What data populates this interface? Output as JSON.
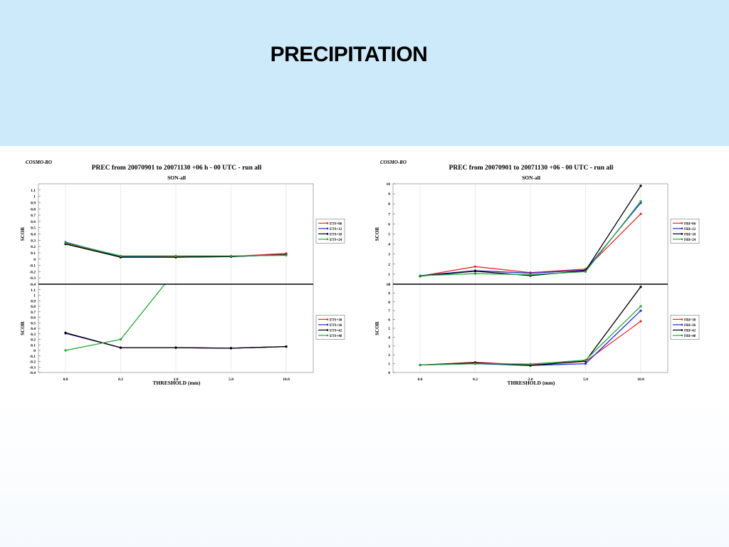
{
  "slide": {
    "title": "PRECIPITATION"
  },
  "chart_data": [
    {
      "type": "line",
      "model": "COSMO-RO",
      "title": "PREC from 20070901 to 20071130 +06 h - 00 UTC - run all",
      "subtitle": "SON-all",
      "xlabel": "THRESHOLD (mm)",
      "categories": [
        "0.0",
        "0.2",
        "2.0",
        "5.0",
        "10.0"
      ],
      "grid": true,
      "legend_position": "right",
      "panels": [
        {
          "ylabel": "SCOR",
          "ylim": [
            -0.4,
            1.2
          ],
          "yticks": [
            "1.1",
            "1",
            "0.9",
            "0.8",
            "0.7",
            "0.6",
            "0.5",
            "0.4",
            "0.3",
            "0.2",
            "0.1",
            "0",
            "-0.1",
            "-0.2",
            "-0.3",
            "-0.4"
          ],
          "series": [
            {
              "name": "ETS+06",
              "color": "#e8282a",
              "values": [
                0.25,
                0.03,
                0.04,
                0.04,
                0.09
              ]
            },
            {
              "name": "ETS+12",
              "color": "#2828d8",
              "values": [
                0.27,
                0.04,
                0.03,
                0.04,
                0.07
              ]
            },
            {
              "name": "ETS+18",
              "color": "#000000",
              "values": [
                0.24,
                0.03,
                0.03,
                0.04,
                0.07
              ]
            },
            {
              "name": "ETS+24",
              "color": "#22a83a",
              "values": [
                0.26,
                0.05,
                0.05,
                0.05,
                0.06
              ]
            }
          ]
        },
        {
          "ylabel": "SCOR",
          "ylim": [
            -0.4,
            1.2
          ],
          "yticks": [
            "1.1",
            "1",
            "0.9",
            "0.8",
            "0.7",
            "0.6",
            "0.5",
            "0.4",
            "0.3",
            "0.2",
            "0.1",
            "0",
            "-0.1",
            "-0.2",
            "-0.3",
            "-0.4"
          ],
          "series": [
            {
              "name": "ETS+30",
              "color": "#e8282a",
              "values": [
                0.32,
                0.05,
                0.05,
                0.04,
                0.07
              ]
            },
            {
              "name": "ETS+36",
              "color": "#2828d8",
              "values": [
                0.31,
                0.05,
                0.05,
                0.04,
                0.07
              ]
            },
            {
              "name": "ETS+42",
              "color": "#000000",
              "values": [
                0.32,
                0.05,
                0.05,
                0.04,
                0.07
              ]
            },
            {
              "name": "ETS+48",
              "color": "#22a83a",
              "values": [
                0.0,
                0.2,
                1.45,
                null,
                null
              ]
            }
          ]
        }
      ]
    },
    {
      "type": "line",
      "model": "COSMO-RO",
      "title": "PREC from 20070901 to 20071130 +06 - 00 UTC - run all",
      "subtitle": "SON-all",
      "xlabel": "THRESHOLD (mm)",
      "categories": [
        "0.0",
        "0.2",
        "2.0",
        "5.0",
        "10.0"
      ],
      "grid": true,
      "legend_position": "right",
      "panels": [
        {
          "ylabel": "SCOR",
          "ylim": [
            0,
            10
          ],
          "yticks": [
            "10",
            "9",
            "8",
            "7",
            "6",
            "5",
            "4",
            "3",
            "2",
            "1",
            "0"
          ],
          "series": [
            {
              "name": "FBI+06",
              "color": "#e8282a",
              "values": [
                0.8,
                1.75,
                1.15,
                1.5,
                7.0
              ]
            },
            {
              "name": "FBI+12",
              "color": "#2828d8",
              "values": [
                0.85,
                1.35,
                1.1,
                1.4,
                8.1
              ]
            },
            {
              "name": "FBI+18",
              "color": "#000000",
              "values": [
                0.8,
                1.3,
                0.85,
                1.35,
                9.8
              ]
            },
            {
              "name": "FBI+24",
              "color": "#22a83a",
              "values": [
                0.85,
                1.05,
                0.95,
                1.25,
                8.25
              ]
            }
          ]
        },
        {
          "ylabel": "SCOR",
          "ylim": [
            0,
            10
          ],
          "yticks": [
            "10",
            "9",
            "8",
            "7",
            "6",
            "5",
            "4",
            "3",
            "2",
            "1",
            "0"
          ],
          "series": [
            {
              "name": "FBI+30",
              "color": "#e8282a",
              "values": [
                0.85,
                1.15,
                0.85,
                1.25,
                5.8
              ]
            },
            {
              "name": "FBI+36",
              "color": "#2828d8",
              "values": [
                0.85,
                1.0,
                0.8,
                1.0,
                7.0
              ]
            },
            {
              "name": "FBI+42",
              "color": "#000000",
              "values": [
                0.85,
                1.1,
                0.8,
                1.3,
                9.7
              ]
            },
            {
              "name": "FBI+48",
              "color": "#22a83a",
              "values": [
                0.85,
                1.0,
                0.95,
                1.4,
                7.5
              ]
            }
          ]
        }
      ]
    }
  ]
}
